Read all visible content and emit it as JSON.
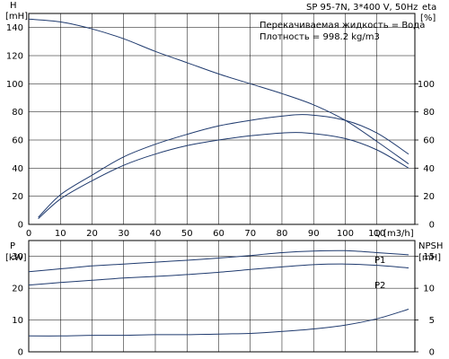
{
  "header": {
    "model": "SP 95-7N, 3*400 V, 50Hz",
    "eta_unit": "eta",
    "pct_unit": "[%]"
  },
  "annotations": {
    "liquid": "Перекачиваемая жидкость = Вода",
    "density": "Плотность = 998.2 kg/m3"
  },
  "colors": {
    "axis": "#000000",
    "grid": "#000000",
    "curve": "#1f3a6e"
  },
  "chart_data": [
    {
      "type": "line",
      "title": "",
      "xlabel": "Q [m3/h]",
      "ylabel_left": "H",
      "ylabel_left_unit": "[mH]",
      "ylabel_right": "eta",
      "ylabel_right_unit": "[%]",
      "xlim": [
        0,
        122
      ],
      "ylim": [
        0,
        150
      ],
      "xticks": [
        "0",
        "10",
        "20",
        "30",
        "40",
        "50",
        "60",
        "70",
        "80",
        "90",
        "100",
        "110"
      ],
      "yticks_left": [
        "0",
        "20",
        "40",
        "60",
        "80",
        "100",
        "120",
        "140"
      ],
      "yticks_right": [
        "0",
        "20",
        "40",
        "60",
        "80",
        "100"
      ],
      "grid": "vertical and horizontal",
      "series": [
        {
          "name": "",
          "axis": "H",
          "x": [
            0,
            10,
            20,
            30,
            40,
            50,
            60,
            70,
            80,
            90,
            100,
            110,
            120
          ],
          "y": [
            146,
            144,
            139,
            132,
            123,
            115,
            107,
            100,
            93,
            85,
            74,
            59,
            43
          ]
        },
        {
          "name": "",
          "axis": "eta",
          "x": [
            3,
            10,
            20,
            30,
            40,
            50,
            60,
            70,
            80,
            88,
            100,
            110,
            120
          ],
          "y": [
            5,
            21,
            35,
            48,
            57,
            64,
            70,
            74,
            77,
            78,
            74,
            65,
            50
          ]
        },
        {
          "name": "",
          "axis": "eta",
          "x": [
            3,
            10,
            20,
            30,
            40,
            50,
            60,
            70,
            80,
            88,
            100,
            110,
            120
          ],
          "y": [
            4,
            18,
            31,
            42,
            50,
            56,
            60,
            63,
            65,
            65,
            61,
            53,
            40
          ]
        }
      ]
    },
    {
      "type": "line",
      "title": "",
      "xlabel": "",
      "ylabel_left": "P",
      "ylabel_left_unit": "[kW]",
      "ylabel_right": "NPSH",
      "ylabel_right_unit": "[mH]",
      "xlim": [
        0,
        122
      ],
      "ylim": [
        0,
        35
      ],
      "npsh_lim": [
        0,
        17.5
      ],
      "yticks_left": [
        "0",
        "10",
        "20",
        "30"
      ],
      "yticks_right": [
        "0",
        "5",
        "10",
        "15"
      ],
      "grid": "vertical and horizontal",
      "series": [
        {
          "name": "P1",
          "axis": "P",
          "x": [
            0,
            10,
            20,
            30,
            40,
            50,
            60,
            70,
            80,
            90,
            100,
            110,
            120
          ],
          "y": [
            25.2,
            26.1,
            27.0,
            27.6,
            28.2,
            28.8,
            29.5,
            30.3,
            31.2,
            31.7,
            31.8,
            31.2,
            30.5
          ]
        },
        {
          "name": "P2",
          "axis": "P",
          "x": [
            0,
            10,
            20,
            30,
            40,
            50,
            60,
            70,
            80,
            90,
            100,
            110,
            120
          ],
          "y": [
            21.0,
            21.8,
            22.5,
            23.2,
            23.7,
            24.3,
            25.0,
            25.9,
            26.7,
            27.4,
            27.6,
            27.2,
            26.4
          ]
        },
        {
          "name": "",
          "axis": "NPSH",
          "x": [
            0,
            10,
            20,
            30,
            40,
            50,
            60,
            70,
            80,
            90,
            100,
            110,
            120
          ],
          "y": [
            2.5,
            2.5,
            2.6,
            2.6,
            2.7,
            2.7,
            2.8,
            2.9,
            3.2,
            3.6,
            4.2,
            5.2,
            6.7
          ]
        }
      ]
    }
  ]
}
